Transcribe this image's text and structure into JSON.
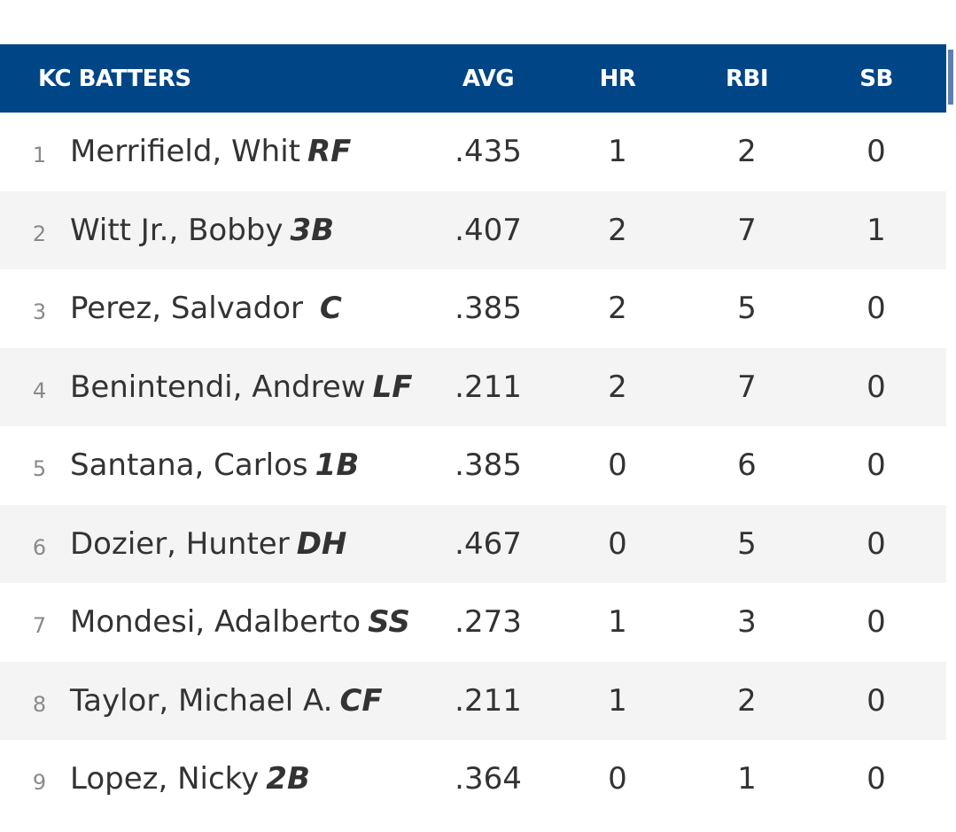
{
  "header": {
    "team_label": "KC BATTERS",
    "columns": [
      "AVG",
      "HR",
      "RBI",
      "SB"
    ]
  },
  "colors": {
    "header_bg": "#004687",
    "header_text": "#ffffff",
    "row_alt_bg": "#f4f4f4",
    "text": "#333333",
    "order_text": "#8a8a8a"
  },
  "batters": [
    {
      "order": "1",
      "name": "Merrifield, Whit",
      "pos": "RF",
      "avg": ".435",
      "hr": "1",
      "rbi": "2",
      "sb": "0"
    },
    {
      "order": "2",
      "name": "Witt Jr., Bobby",
      "pos": "3B",
      "avg": ".407",
      "hr": "2",
      "rbi": "7",
      "sb": "1"
    },
    {
      "order": "3",
      "name": "Perez, Salvador ",
      "pos": "C",
      "avg": ".385",
      "hr": "2",
      "rbi": "5",
      "sb": "0"
    },
    {
      "order": "4",
      "name": "Benintendi, Andrew",
      "pos": "LF",
      "avg": ".211",
      "hr": "2",
      "rbi": "7",
      "sb": "0"
    },
    {
      "order": "5",
      "name": "Santana, Carlos",
      "pos": "1B",
      "avg": ".385",
      "hr": "0",
      "rbi": "6",
      "sb": "0"
    },
    {
      "order": "6",
      "name": "Dozier, Hunter",
      "pos": "DH",
      "avg": ".467",
      "hr": "0",
      "rbi": "5",
      "sb": "0"
    },
    {
      "order": "7",
      "name": "Mondesi, Adalberto",
      "pos": "SS",
      "avg": ".273",
      "hr": "1",
      "rbi": "3",
      "sb": "0"
    },
    {
      "order": "8",
      "name": "Taylor, Michael A.",
      "pos": "CF",
      "avg": ".211",
      "hr": "1",
      "rbi": "2",
      "sb": "0"
    },
    {
      "order": "9",
      "name": "Lopez, Nicky",
      "pos": "2B",
      "avg": ".364",
      "hr": "0",
      "rbi": "1",
      "sb": "0"
    }
  ]
}
